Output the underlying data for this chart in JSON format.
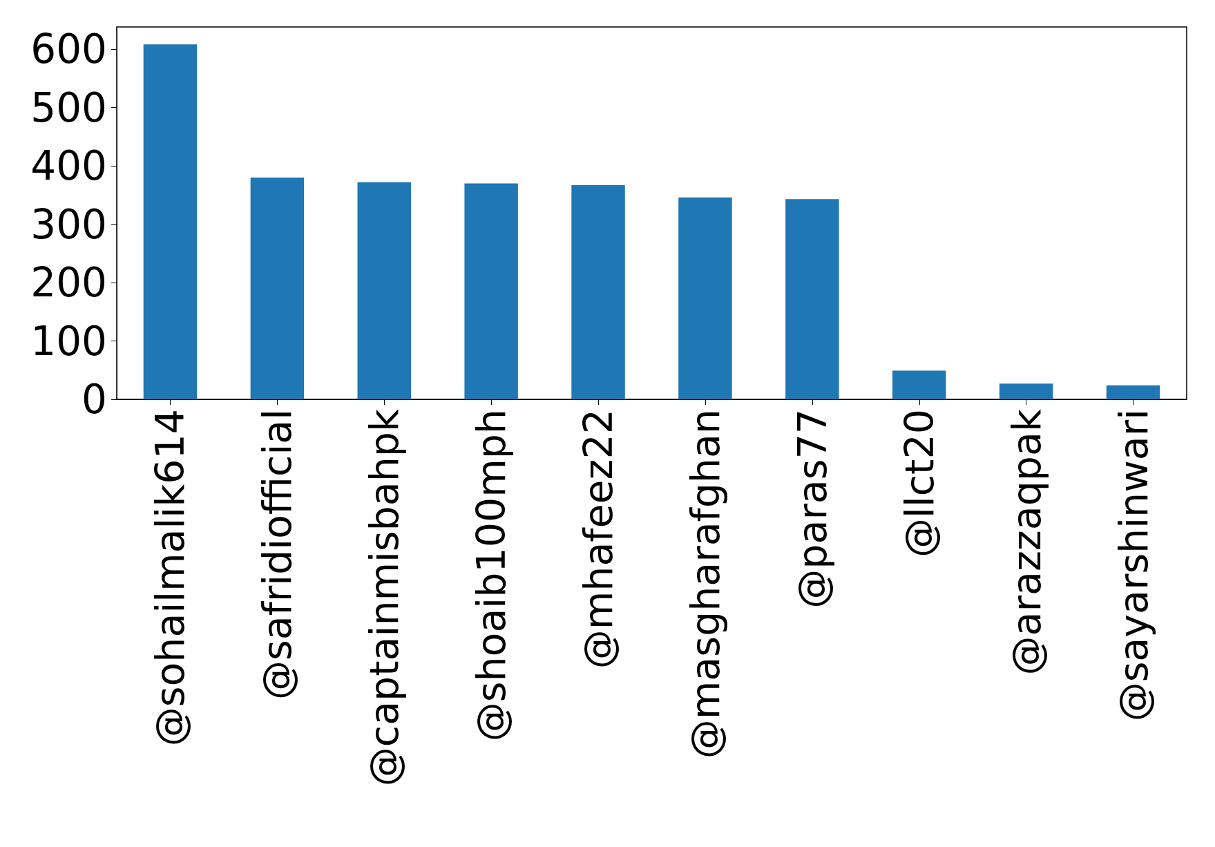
{
  "chart_data": {
    "type": "bar",
    "categories": [
      "@sohailmalik614",
      "@safridiofficial",
      "@captainmisbahpk",
      "@shoaib100mph",
      "@mhafeez22",
      "@masgharafghan",
      "@paras77",
      "@llct20",
      "@arazzaqpak",
      "@sayarshinwari"
    ],
    "values": [
      608,
      380,
      372,
      370,
      367,
      346,
      343,
      49,
      27,
      24
    ],
    "color": "#1f77b4",
    "ylim": [
      0,
      638
    ],
    "yticks": [
      0,
      100,
      200,
      300,
      400,
      500,
      600
    ]
  }
}
